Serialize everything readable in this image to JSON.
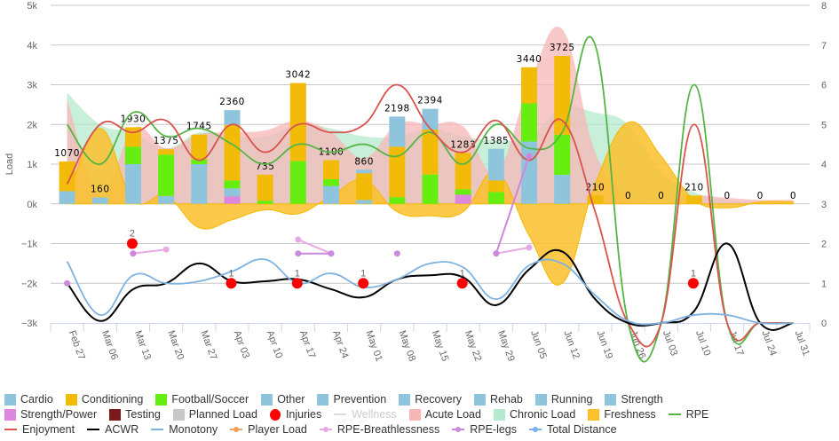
{
  "chart_data": {
    "type": "bar",
    "categories": [
      "Feb 27",
      "Mar 06",
      "Mar 13",
      "Mar 20",
      "Mar 27",
      "Apr 03",
      "Apr 10",
      "Apr 17",
      "Apr 24",
      "May 01",
      "May 08",
      "May 15",
      "May 22",
      "May 29",
      "Jun 05",
      "Jun 12",
      "Jun 19",
      "Jun 26",
      "Jul 03",
      "Jul 10",
      "Jul 17",
      "Jul 24",
      "Jul 31"
    ],
    "ylabel": "Load",
    "y_left": {
      "min": -3000,
      "max": 5000,
      "ticks": [
        "−3k",
        "−2k",
        "−1k",
        "0k",
        "1k",
        "2k",
        "3k",
        "4k",
        "5k"
      ]
    },
    "y_right": {
      "min": 0,
      "max": 8,
      "ticks": [
        "0",
        "1",
        "2",
        "3",
        "4",
        "5",
        "6",
        "7",
        "8"
      ]
    },
    "grid": true,
    "legend_position": "bottom",
    "stack_totals": [
      1070,
      160,
      1930,
      1375,
      1745,
      2360,
      735,
      3042,
      1100,
      860,
      2198,
      2394,
      1283,
      1385,
      3440,
      3725,
      210,
      0,
      0,
      210,
      0,
      0,
      0
    ],
    "bar_series": [
      {
        "name": "Cardio",
        "color": "#8ec5dc",
        "values": [
          0,
          0,
          0,
          0,
          0,
          370,
          0,
          0,
          0,
          90,
          758,
          524,
          0,
          795,
          0,
          0,
          0,
          0,
          0,
          0,
          0,
          0,
          0
        ]
      },
      {
        "name": "Conditioning",
        "color": "#f2bb07",
        "values": [
          750,
          0,
          490,
          135,
          625,
          1400,
          655,
          1962,
          480,
          670,
          1270,
          1130,
          913,
          290,
          910,
          1985,
          210,
          0,
          0,
          210,
          0,
          0,
          0
        ]
      },
      {
        "name": "Football/Soccer",
        "color": "#66ee11",
        "values": [
          0,
          0,
          440,
          1040,
          120,
          200,
          80,
          1080,
          170,
          0,
          170,
          740,
          140,
          300,
          960,
          1010,
          0,
          0,
          0,
          0,
          0,
          0,
          0
        ]
      },
      {
        "name": "Other",
        "color": "#8ec5dc",
        "values": [
          320,
          160,
          1000,
          200,
          1000,
          200,
          0,
          0,
          450,
          100,
          0,
          0,
          0,
          0,
          1570,
          730,
          0,
          0,
          0,
          0,
          0,
          0,
          0
        ]
      },
      {
        "name": "Prevention",
        "color": "#8ec5dc",
        "values": []
      },
      {
        "name": "Recovery",
        "color": "#8ec5dc",
        "values": []
      },
      {
        "name": "Rehab",
        "color": "#8ec5dc",
        "values": []
      },
      {
        "name": "Running",
        "color": "#8ec5dc",
        "values": []
      },
      {
        "name": "Strength",
        "color": "#8ec5dc",
        "values": []
      },
      {
        "name": "Strength/Power",
        "color": "#dd88dd",
        "values": [
          0,
          0,
          0,
          0,
          0,
          190,
          0,
          0,
          0,
          0,
          0,
          0,
          230,
          0,
          0,
          0,
          0,
          0,
          0,
          0,
          0,
          0,
          0
        ]
      },
      {
        "name": "Testing",
        "color": "#7b1a1a",
        "values": []
      },
      {
        "name": "Planned Load",
        "color": "#c8c8c8",
        "values": []
      }
    ],
    "area_series": [
      {
        "name": "Chronic Load",
        "color": "#b6e9cd",
        "axis": "left",
        "values": [
          2800,
          2000,
          1800,
          1400,
          1800,
          1700,
          1700,
          2000,
          1900,
          1700,
          1700,
          1900,
          1700,
          1600,
          1700,
          2400,
          2300,
          2000,
          800,
          300,
          100,
          50,
          50
        ]
      },
      {
        "name": "Acute Load",
        "color": "#f7b7b7",
        "axis": "left",
        "values": [
          2650,
          200,
          1900,
          1400,
          1750,
          1800,
          1850,
          2100,
          1800,
          1150,
          2000,
          2000,
          1950,
          800,
          3000,
          4400,
          1300,
          200,
          0,
          200,
          150,
          100,
          100
        ]
      },
      {
        "name": "Freshness",
        "color": "#fcc02b",
        "axis": "left",
        "values": [
          150,
          1900,
          100,
          200,
          -600,
          -400,
          -150,
          -250,
          200,
          600,
          -200,
          -300,
          -200,
          800,
          -800,
          -2000,
          500,
          2050,
          1200,
          100,
          -100,
          50,
          50
        ]
      }
    ],
    "line_series": [
      {
        "name": "RPE",
        "color": "#55b544",
        "axis": "right",
        "values": [
          5.0,
          4.0,
          5.3,
          4.7,
          4.9,
          4.5,
          4.0,
          4.5,
          4.3,
          4.5,
          4.2,
          4.8,
          4.0,
          5.0,
          4.4,
          4.8,
          7.0,
          0,
          0,
          6.0,
          0,
          0,
          0
        ]
      },
      {
        "name": "Enjoyment",
        "color": "#d9534f",
        "axis": "right",
        "values": [
          3.5,
          5.0,
          4.8,
          5.1,
          4.1,
          5.0,
          4.3,
          5.0,
          4.8,
          5.0,
          6.0,
          4.9,
          4.3,
          5.1,
          4.1,
          5.1,
          2.8,
          0,
          0,
          5.0,
          0,
          0,
          0
        ]
      },
      {
        "name": "ACWR",
        "color": "#000000",
        "axis": "right",
        "values": [
          1.0,
          0.05,
          0.85,
          1.0,
          1.5,
          1.05,
          1.05,
          1.1,
          0.85,
          0.65,
          1.1,
          1.2,
          1.15,
          0.45,
          1.35,
          1.8,
          0.6,
          0,
          0,
          0.3,
          2.0,
          0,
          0
        ]
      },
      {
        "name": "Monotony",
        "color": "#7eb2e0",
        "axis": "right",
        "values": [
          1.55,
          0.2,
          1.2,
          1.0,
          1.05,
          1.3,
          1.6,
          1.0,
          1.25,
          0.9,
          1.1,
          1.5,
          1.4,
          0.6,
          1.45,
          1.5,
          0.7,
          0.05,
          0,
          0.2,
          0.2,
          0,
          0
        ]
      }
    ],
    "marker_series": [
      {
        "name": "RPE-Breathlessness",
        "color": "#e8a8e8",
        "axis": "right",
        "values": [
          null,
          null,
          1.75,
          1.85,
          null,
          null,
          null,
          2.1,
          1.75,
          null,
          null,
          null,
          null,
          1.75,
          1.9,
          null,
          null,
          null,
          null,
          null,
          null,
          null,
          null
        ]
      },
      {
        "name": "RPE-legs",
        "color": "#cc88dd",
        "axis": "right",
        "values": [
          1.0,
          null,
          1.75,
          null,
          null,
          null,
          null,
          1.75,
          1.75,
          null,
          1.75,
          null,
          null,
          1.75,
          4.2,
          null,
          null,
          null,
          null,
          null,
          null,
          null,
          null
        ]
      }
    ],
    "injuries": {
      "name": "Injuries",
      "color": "#ff0000",
      "axis": "right",
      "values": [
        null,
        null,
        2,
        null,
        null,
        1,
        null,
        1,
        null,
        1,
        null,
        null,
        1,
        null,
        null,
        null,
        null,
        null,
        null,
        1,
        null,
        null,
        null
      ]
    }
  },
  "legend": {
    "rows": [
      [
        {
          "label": "Cardio",
          "type": "square",
          "color": "#8ec5dc"
        },
        {
          "label": "Conditioning",
          "type": "square",
          "color": "#f2bb07"
        },
        {
          "label": "Football/Soccer",
          "type": "square",
          "color": "#66ee11"
        },
        {
          "label": "Other",
          "type": "square",
          "color": "#8ec5dc"
        },
        {
          "label": "Prevention",
          "type": "square",
          "color": "#8ec5dc"
        },
        {
          "label": "Recovery",
          "type": "square",
          "color": "#8ec5dc"
        },
        {
          "label": "Rehab",
          "type": "square",
          "color": "#8ec5dc"
        },
        {
          "label": "Running",
          "type": "square",
          "color": "#8ec5dc"
        },
        {
          "label": "Strength",
          "type": "square",
          "color": "#8ec5dc"
        }
      ],
      [
        {
          "label": "Strength/Power",
          "type": "square",
          "color": "#dd88dd"
        },
        {
          "label": "Testing",
          "type": "square",
          "color": "#7b1a1a"
        },
        {
          "label": "Planned Load",
          "type": "square",
          "color": "#c8c8c8"
        },
        {
          "label": "Injuries",
          "type": "circle",
          "color": "#ff0000"
        },
        {
          "label": "Wellness",
          "type": "line",
          "color": "#dddddd",
          "disabled": true
        },
        {
          "label": "Acute Load",
          "type": "square",
          "color": "#f7b7b7"
        },
        {
          "label": "Chronic Load",
          "type": "square",
          "color": "#b6e9cd"
        },
        {
          "label": "Freshness",
          "type": "square",
          "color": "#fcc02b"
        },
        {
          "label": "RPE",
          "type": "line",
          "color": "#55b544"
        }
      ],
      [
        {
          "label": "Enjoyment",
          "type": "line",
          "color": "#d9534f"
        },
        {
          "label": "ACWR",
          "type": "line",
          "color": "#000000"
        },
        {
          "label": "Monotony",
          "type": "line",
          "color": "#7eb2e0"
        },
        {
          "label": "Player Load",
          "type": "linedot",
          "color": "#f0a060"
        },
        {
          "label": "RPE-Breathlessness",
          "type": "linedot",
          "color": "#e8a8e8"
        },
        {
          "label": "RPE-legs",
          "type": "linedot",
          "color": "#cc88dd"
        },
        {
          "label": "Total Distance",
          "type": "linedot",
          "color": "#7cb5ec"
        }
      ]
    ]
  }
}
